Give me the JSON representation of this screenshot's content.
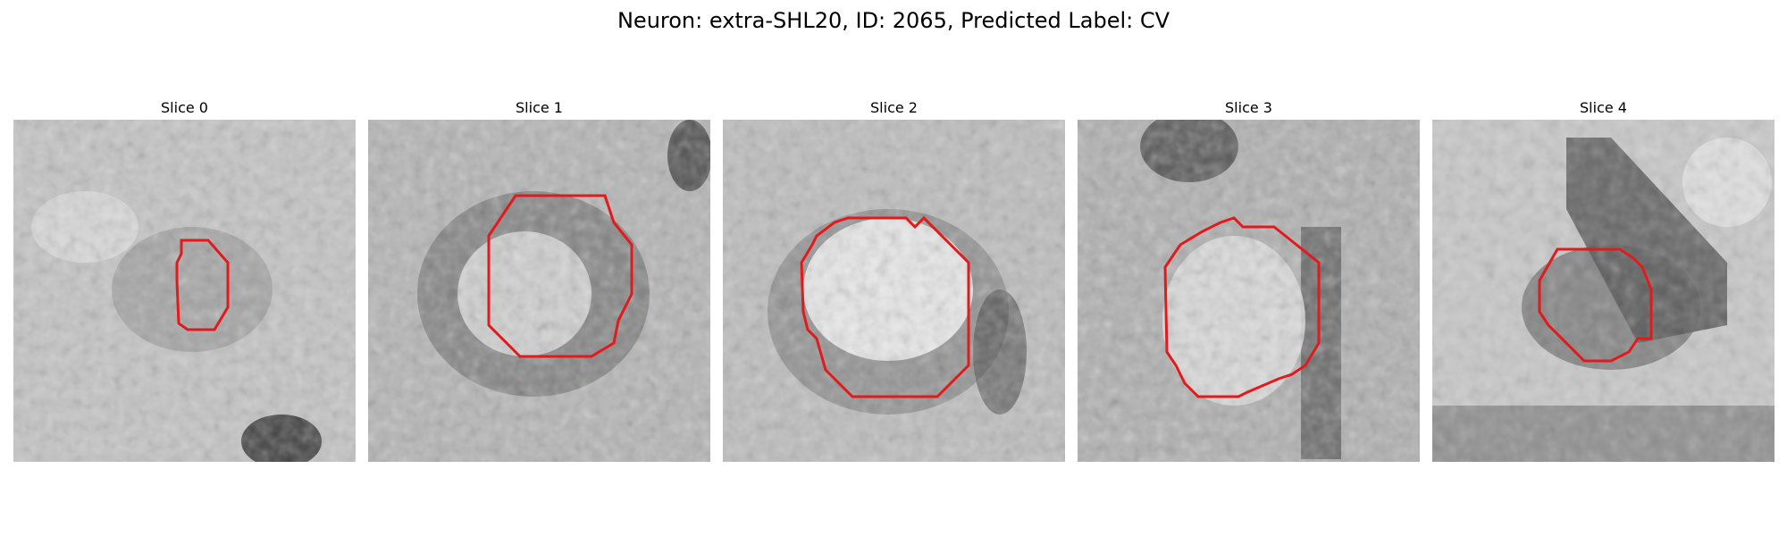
{
  "figure": {
    "title": "Neuron: extra-SHL20, ID: 2065, Predicted Label: CV",
    "contour_color": "#e31a1c"
  },
  "slices": [
    {
      "label": "Slice 0"
    },
    {
      "label": "Slice 1"
    },
    {
      "label": "Slice 2"
    },
    {
      "label": "Slice 3"
    },
    {
      "label": "Slice 4"
    }
  ]
}
